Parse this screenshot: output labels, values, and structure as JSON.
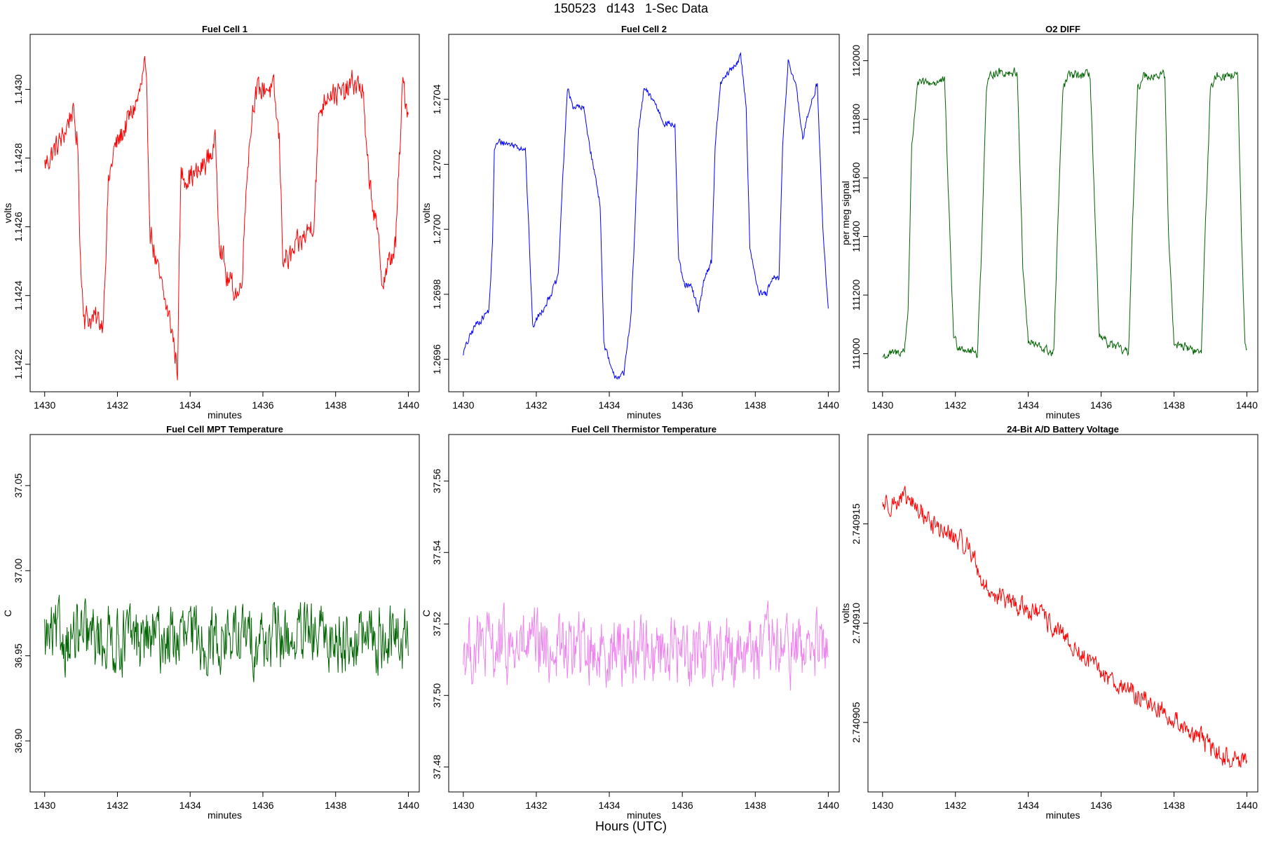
{
  "figure": {
    "title": "150523   d143   1-Sec Data",
    "xlabel": "Hours (UTC)"
  },
  "chart_data": [
    {
      "type": "line",
      "title": "Fuel Cell 1",
      "xlabel": "minutes",
      "ylabel": "volts",
      "color": "#ff0000",
      "xlim": [
        1429.6,
        1440.3
      ],
      "ylim": [
        1.14212,
        1.14316
      ],
      "xticks": [
        "1430",
        "1432",
        "1434",
        "1436",
        "1438",
        "1440"
      ],
      "yticks": [
        "1.1422",
        "1.1424",
        "1.1426",
        "1.1428",
        "1.1430"
      ],
      "noise": 6e-05,
      "keypoints": [
        [
          1430,
          1.14278
        ],
        [
          1430.5,
          1.14286
        ],
        [
          1430.75,
          1.14294
        ],
        [
          1430.9,
          1.14285
        ],
        [
          1431.0,
          1.14246
        ],
        [
          1431.1,
          1.14234
        ],
        [
          1431.6,
          1.14232
        ],
        [
          1431.75,
          1.14272
        ],
        [
          1431.9,
          1.14282
        ],
        [
          1432.3,
          1.14291
        ],
        [
          1432.6,
          1.14298
        ],
        [
          1432.75,
          1.14306
        ],
        [
          1432.8,
          1.14298
        ],
        [
          1432.9,
          1.1426
        ],
        [
          1433.1,
          1.14247
        ],
        [
          1433.5,
          1.1423
        ],
        [
          1433.65,
          1.14218
        ],
        [
          1433.7,
          1.1425
        ],
        [
          1433.75,
          1.14275
        ],
        [
          1434.2,
          1.14275
        ],
        [
          1434.5,
          1.1428
        ],
        [
          1434.7,
          1.14284
        ],
        [
          1434.8,
          1.14258
        ],
        [
          1435.0,
          1.14245
        ],
        [
          1435.35,
          1.1424
        ],
        [
          1435.45,
          1.1425
        ],
        [
          1435.55,
          1.14275
        ],
        [
          1435.75,
          1.14298
        ],
        [
          1436.1,
          1.14301
        ],
        [
          1436.3,
          1.14299
        ],
        [
          1436.45,
          1.14285
        ],
        [
          1436.55,
          1.14252
        ],
        [
          1436.7,
          1.1425
        ],
        [
          1437.2,
          1.14258
        ],
        [
          1437.4,
          1.14262
        ],
        [
          1437.55,
          1.14293
        ],
        [
          1437.8,
          1.143
        ],
        [
          1438.2,
          1.14298
        ],
        [
          1438.5,
          1.14302
        ],
        [
          1438.75,
          1.143
        ],
        [
          1438.85,
          1.1428
        ],
        [
          1439.05,
          1.14265
        ],
        [
          1439.3,
          1.14244
        ],
        [
          1439.5,
          1.1425
        ],
        [
          1439.65,
          1.14255
        ],
        [
          1439.85,
          1.14302
        ],
        [
          1440.0,
          1.14293
        ]
      ]
    },
    {
      "type": "line",
      "title": "Fuel Cell 2",
      "xlabel": "minutes",
      "ylabel": "volts",
      "color": "#0000ff",
      "xlim": [
        1429.6,
        1440.3
      ],
      "ylim": [
        1.2695,
        1.2706
      ],
      "xticks": [
        "1430",
        "1432",
        "1434",
        "1436",
        "1438",
        "1440"
      ],
      "yticks": [
        "1.2696",
        "1.2698",
        "1.2700",
        "1.2702",
        "1.2704"
      ],
      "noise": 1.8e-05,
      "keypoints": [
        [
          1430,
          1.26962
        ],
        [
          1430.3,
          1.2697
        ],
        [
          1430.7,
          1.26975
        ],
        [
          1430.8,
          1.26995
        ],
        [
          1430.85,
          1.27025
        ],
        [
          1431.0,
          1.27027
        ],
        [
          1431.7,
          1.27025
        ],
        [
          1431.8,
          1.26998
        ],
        [
          1431.9,
          1.2697
        ],
        [
          1432.3,
          1.26978
        ],
        [
          1432.6,
          1.26985
        ],
        [
          1432.7,
          1.2701
        ],
        [
          1432.85,
          1.27043
        ],
        [
          1433.0,
          1.27038
        ],
        [
          1433.3,
          1.27037
        ],
        [
          1433.55,
          1.2702
        ],
        [
          1433.75,
          1.27008
        ],
        [
          1433.85,
          1.26965
        ],
        [
          1434.1,
          1.26955
        ],
        [
          1434.4,
          1.26955
        ],
        [
          1434.6,
          1.26975
        ],
        [
          1434.7,
          1.27
        ],
        [
          1434.8,
          1.2703
        ],
        [
          1434.95,
          1.27043
        ],
        [
          1435.2,
          1.2704
        ],
        [
          1435.5,
          1.27033
        ],
        [
          1435.8,
          1.27032
        ],
        [
          1435.9,
          1.2699
        ],
        [
          1436.05,
          1.26983
        ],
        [
          1436.25,
          1.26982
        ],
        [
          1436.45,
          1.26975
        ],
        [
          1436.6,
          1.26985
        ],
        [
          1436.8,
          1.2699
        ],
        [
          1436.9,
          1.27025
        ],
        [
          1437.05,
          1.27045
        ],
        [
          1437.4,
          1.2705
        ],
        [
          1437.6,
          1.27053
        ],
        [
          1437.75,
          1.27038
        ],
        [
          1437.85,
          1.26995
        ],
        [
          1438.1,
          1.2698
        ],
        [
          1438.3,
          1.2698
        ],
        [
          1438.5,
          1.26985
        ],
        [
          1438.65,
          1.26985
        ],
        [
          1438.75,
          1.27025
        ],
        [
          1438.9,
          1.27052
        ],
        [
          1439.1,
          1.27045
        ],
        [
          1439.3,
          1.27028
        ],
        [
          1439.55,
          1.2704
        ],
        [
          1439.7,
          1.27045
        ],
        [
          1439.85,
          1.27
        ],
        [
          1440.0,
          1.26975
        ]
      ]
    },
    {
      "type": "line",
      "title": "O2 DIFF",
      "xlabel": "minutes",
      "ylabel": "per meg signal",
      "color": "#006400",
      "xlim": [
        1429.6,
        1440.3
      ],
      "ylim": [
        110870,
        112090
      ],
      "xticks": [
        "1430",
        "1432",
        "1434",
        "1436",
        "1438",
        "1440"
      ],
      "yticks": [
        "111000",
        "111200",
        "111400",
        "111600",
        "111800",
        "112000"
      ],
      "noise": 25,
      "keypoints": [
        [
          1430,
          110990
        ],
        [
          1430.6,
          111010
        ],
        [
          1430.7,
          111150
        ],
        [
          1430.8,
          111700
        ],
        [
          1430.95,
          111920
        ],
        [
          1431.7,
          111930
        ],
        [
          1431.85,
          111400
        ],
        [
          1431.95,
          111060
        ],
        [
          1432.05,
          111030
        ],
        [
          1432.6,
          111000
        ],
        [
          1432.7,
          111300
        ],
        [
          1432.85,
          111900
        ],
        [
          1433.0,
          111960
        ],
        [
          1433.7,
          111960
        ],
        [
          1433.85,
          111300
        ],
        [
          1434.0,
          111040
        ],
        [
          1434.7,
          111000
        ],
        [
          1434.8,
          111400
        ],
        [
          1434.95,
          111900
        ],
        [
          1435.1,
          111950
        ],
        [
          1435.7,
          111950
        ],
        [
          1435.85,
          111400
        ],
        [
          1435.95,
          111050
        ],
        [
          1436.75,
          111000
        ],
        [
          1436.85,
          111400
        ],
        [
          1437.0,
          111900
        ],
        [
          1437.15,
          111950
        ],
        [
          1437.75,
          111950
        ],
        [
          1437.85,
          111400
        ],
        [
          1438.0,
          111040
        ],
        [
          1438.75,
          111000
        ],
        [
          1438.85,
          111400
        ],
        [
          1439.0,
          111900
        ],
        [
          1439.15,
          111950
        ],
        [
          1439.75,
          111950
        ],
        [
          1439.85,
          111400
        ],
        [
          1439.95,
          111020
        ],
        [
          1440.0,
          111000
        ]
      ]
    },
    {
      "type": "line",
      "title": "Fuel Cell MPT Temperature",
      "xlabel": "minutes",
      "ylabel": "C",
      "color": "#006400",
      "xlim": [
        1429.6,
        1440.3
      ],
      "ylim": [
        36.87,
        37.08
      ],
      "xticks": [
        "1430",
        "1432",
        "1434",
        "1436",
        "1438",
        "1440"
      ],
      "yticks": [
        "36.90",
        "36.95",
        "37.00",
        "37.05"
      ],
      "noise": 0.03,
      "keypoints": [
        [
          1430,
          36.96
        ],
        [
          1440,
          36.96
        ]
      ]
    },
    {
      "type": "line",
      "title": "Fuel Cell Thermistor Temperature",
      "xlabel": "minutes",
      "ylabel": "C",
      "color": "#ee82ee",
      "xlim": [
        1429.6,
        1440.3
      ],
      "ylim": [
        37.473,
        37.573
      ],
      "xticks": [
        "1430",
        "1432",
        "1434",
        "1436",
        "1438",
        "1440"
      ],
      "yticks": [
        "37.48",
        "37.50",
        "37.52",
        "37.54",
        "37.56"
      ],
      "noise": 0.015,
      "keypoints": [
        [
          1430,
          37.513
        ],
        [
          1440,
          37.513
        ]
      ]
    },
    {
      "type": "line",
      "title": "24-Bit A/D Battery Voltage",
      "xlabel": "minutes",
      "ylabel": "volts",
      "color": "#ff0000",
      "xlim": [
        1429.6,
        1440.3
      ],
      "ylim": [
        2.7409015,
        2.7409195
      ],
      "xticks": [
        "1430",
        "1432",
        "1434",
        "1436",
        "1438",
        "1440"
      ],
      "yticks": [
        "2.740905",
        "2.740910",
        "2.740915"
      ],
      "noise": 8e-07,
      "keypoints": [
        [
          1430,
          2.740916
        ],
        [
          1430.7,
          2.7409162
        ],
        [
          1431.5,
          2.7409148
        ],
        [
          1432.4,
          2.7409138
        ],
        [
          1432.8,
          2.7409118
        ],
        [
          1433.5,
          2.740911
        ],
        [
          1434.3,
          2.7409105
        ],
        [
          1435.0,
          2.7409092
        ],
        [
          1435.8,
          2.7409078
        ],
        [
          1436.6,
          2.7409068
        ],
        [
          1437.5,
          2.7409058
        ],
        [
          1438.5,
          2.7409045
        ],
        [
          1439.3,
          2.7409033
        ],
        [
          1440.0,
          2.740903
        ]
      ]
    }
  ]
}
